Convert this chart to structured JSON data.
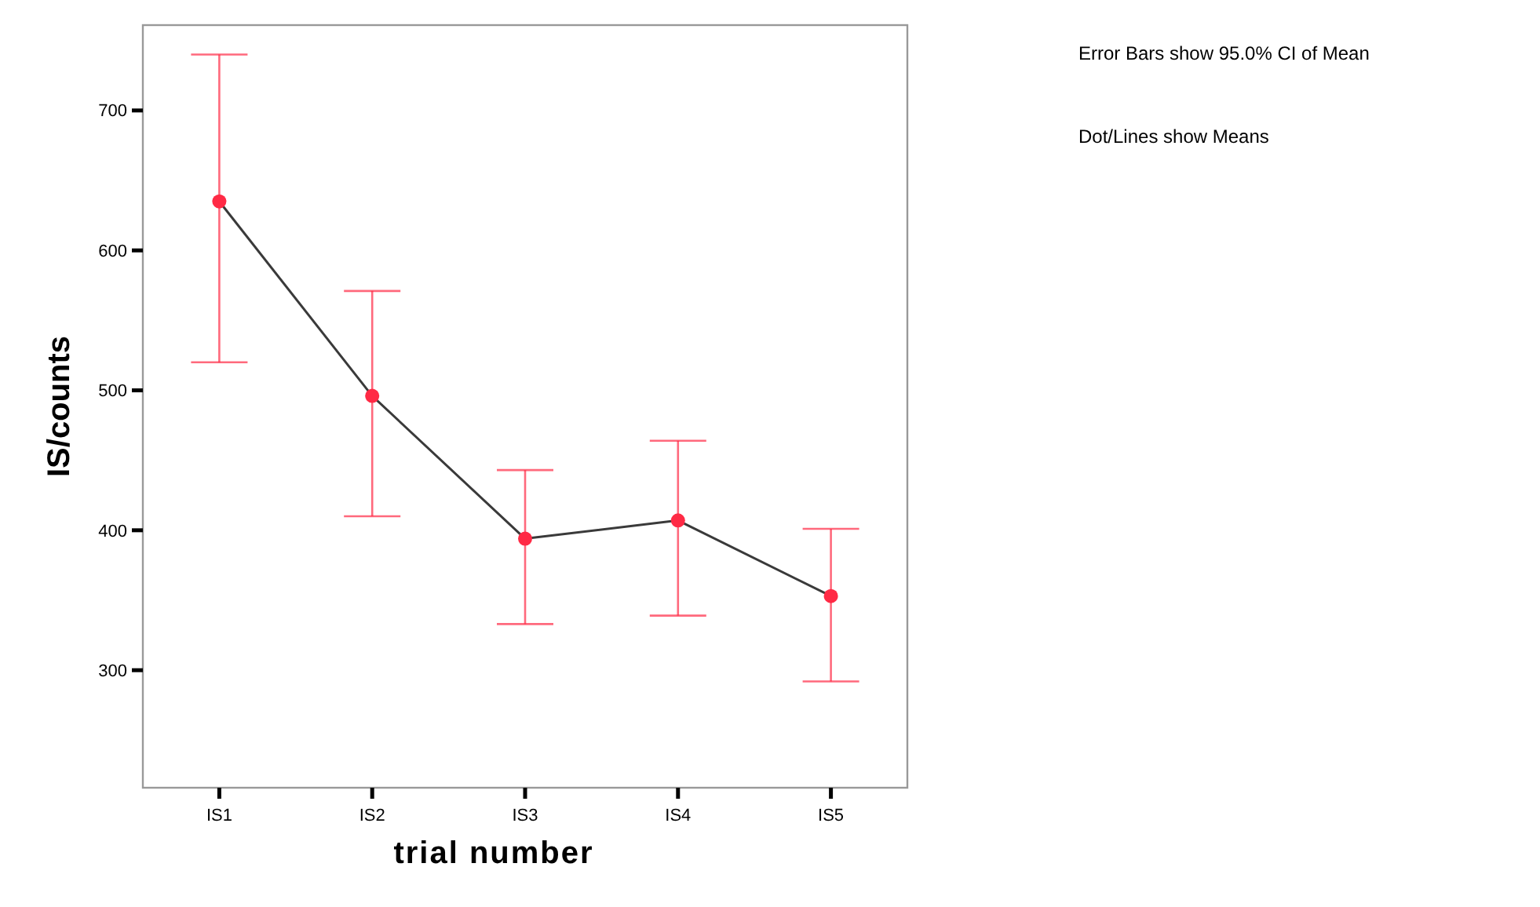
{
  "chart_data": {
    "type": "line",
    "xlabel": "trial number",
    "ylabel": "IS/counts",
    "categories": [
      "IS1",
      "IS2",
      "IS3",
      "IS4",
      "IS5"
    ],
    "series": [
      {
        "type": "line",
        "color": "#3a3a3a",
        "values": [
          635,
          496,
          394,
          407,
          353
        ]
      },
      {
        "type": "scatter",
        "marker": "circle",
        "color": "#ff2a45",
        "values": [
          635,
          496,
          394,
          407,
          353
        ],
        "errors": [
          [
            520,
            740
          ],
          [
            410,
            571
          ],
          [
            333,
            443
          ],
          [
            339,
            464
          ],
          [
            292,
            401
          ]
        ]
      }
    ],
    "ylim": [
      216,
      761
    ],
    "yticks": [
      300,
      400,
      500,
      600,
      700
    ],
    "grid": false,
    "marker": "none",
    "annotations": [
      "Error Bars show 95.0% CI of Mean",
      "Dot/Lines show Means"
    ]
  }
}
